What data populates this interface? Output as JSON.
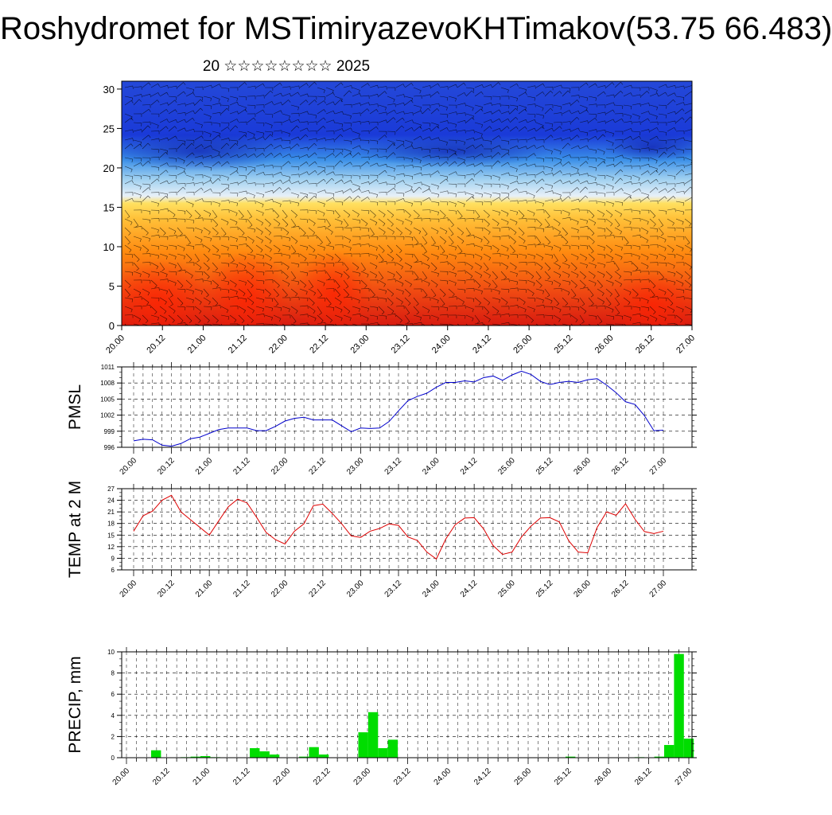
{
  "title": "Roshydromet for MSTimiryazevoKHTimakov(53.75 66.483)",
  "subtitle": "20 ☆☆☆☆☆☆☆☆ 2025",
  "chart_data": [
    {
      "type": "heatmap",
      "title": "",
      "ylim": [
        0,
        31
      ],
      "yticks": [
        0,
        5,
        10,
        15,
        20,
        25,
        30
      ],
      "x_labels": [
        "20.00",
        "20.12",
        "21.00",
        "21.12",
        "22.00",
        "22.12",
        "23.00",
        "23.12",
        "24.00",
        "24.12",
        "25.00",
        "25.12",
        "26.00",
        "26.12",
        "27.00"
      ],
      "colors": [
        "#d81a10",
        "#ff8a10",
        "#ffe060",
        "#9fd0f0",
        "#1a3ad8"
      ],
      "overlay": "wind-barbs"
    },
    {
      "type": "line",
      "ylabel": "PMSL",
      "ylim": [
        996,
        1011
      ],
      "yticks": [
        996,
        999,
        1002,
        1005,
        1008,
        1011
      ],
      "x_labels": [
        "20.00",
        "20.12",
        "21.00",
        "21.12",
        "22.00",
        "22.12",
        "23.00",
        "23.12",
        "24.00",
        "24.12",
        "25.00",
        "25.12",
        "26.00",
        "26.12",
        "27.00"
      ],
      "color": "#0000cc",
      "values": [
        997.2,
        997.5,
        997.4,
        996.4,
        996.2,
        996.7,
        997.6,
        997.9,
        998.6,
        999.3,
        999.6,
        999.6,
        999.6,
        999.1,
        999.1,
        999.9,
        1000.9,
        1001.4,
        1001.6,
        1001.1,
        1001.1,
        1001.1,
        1000,
        998.9,
        999.6,
        999.5,
        999.6,
        1000.8,
        1002.8,
        1004.7,
        1005.5,
        1006.1,
        1007.2,
        1008.1,
        1008.1,
        1008.4,
        1008.2,
        1009,
        1009.3,
        1008.5,
        1009.5,
        1010.2,
        1009.6,
        1008.3,
        1007.7,
        1008.1,
        1008.3,
        1008.1,
        1008.6,
        1008.8,
        1007.6,
        1006.2,
        1004.5,
        1004,
        1001.9,
        999.1,
        999.2
      ]
    },
    {
      "type": "line",
      "ylabel": "TEMP at 2 M",
      "ylim": [
        6,
        27
      ],
      "yticks": [
        6,
        9,
        12,
        15,
        18,
        21,
        24,
        27
      ],
      "x_labels": [
        "20.00",
        "20.12",
        "21.00",
        "21.12",
        "22.00",
        "22.12",
        "23.00",
        "23.12",
        "24.00",
        "24.12",
        "25.00",
        "25.12",
        "26.00",
        "26.12",
        "27.00"
      ],
      "color": "#dd0000",
      "values": [
        16,
        20,
        21.2,
        24,
        25.3,
        21,
        19,
        17,
        15,
        18.7,
        22.3,
        24.3,
        23.3,
        19.6,
        15.7,
        13.8,
        12.7,
        16,
        17.9,
        22.6,
        23,
        20.6,
        17.9,
        14.8,
        14.4,
        16,
        16.7,
        17.9,
        17.5,
        14.5,
        13.6,
        10.6,
        8.8,
        14,
        17.7,
        19.4,
        19.5,
        16.6,
        12.3,
        10,
        10.6,
        14.5,
        17.3,
        19.4,
        19.5,
        18.4,
        13.5,
        10.6,
        10.4,
        17,
        21,
        20.1,
        23.1,
        19.1,
        15.9,
        15.4,
        16
      ]
    },
    {
      "type": "bar",
      "ylabel": "PRECIP, mm",
      "ylim": [
        0,
        10
      ],
      "yticks": [
        0,
        2,
        4,
        6,
        8,
        10
      ],
      "x_labels": [
        "20.00",
        "20.12",
        "21.00",
        "21.12",
        "22.00",
        "22.12",
        "23.00",
        "23.12",
        "24.00",
        "24.12",
        "25.00",
        "25.12",
        "26.00",
        "26.12",
        "27.00"
      ],
      "color": "#00dd00",
      "values": [
        0,
        0,
        0,
        0.7,
        0,
        0,
        0.05,
        0.1,
        0.15,
        0.05,
        0,
        0,
        0,
        0.9,
        0.6,
        0.3,
        0,
        0,
        0.1,
        1,
        0.3,
        0,
        0,
        0,
        2.4,
        4.3,
        0.9,
        1.7,
        0,
        0,
        0,
        0,
        0,
        0,
        0,
        0,
        0,
        0,
        0,
        0,
        0,
        0,
        0,
        0,
        0,
        0.1,
        0,
        0,
        0,
        0,
        0,
        0,
        0.05,
        0,
        0.1,
        1.2,
        9.8,
        1.8
      ]
    }
  ]
}
